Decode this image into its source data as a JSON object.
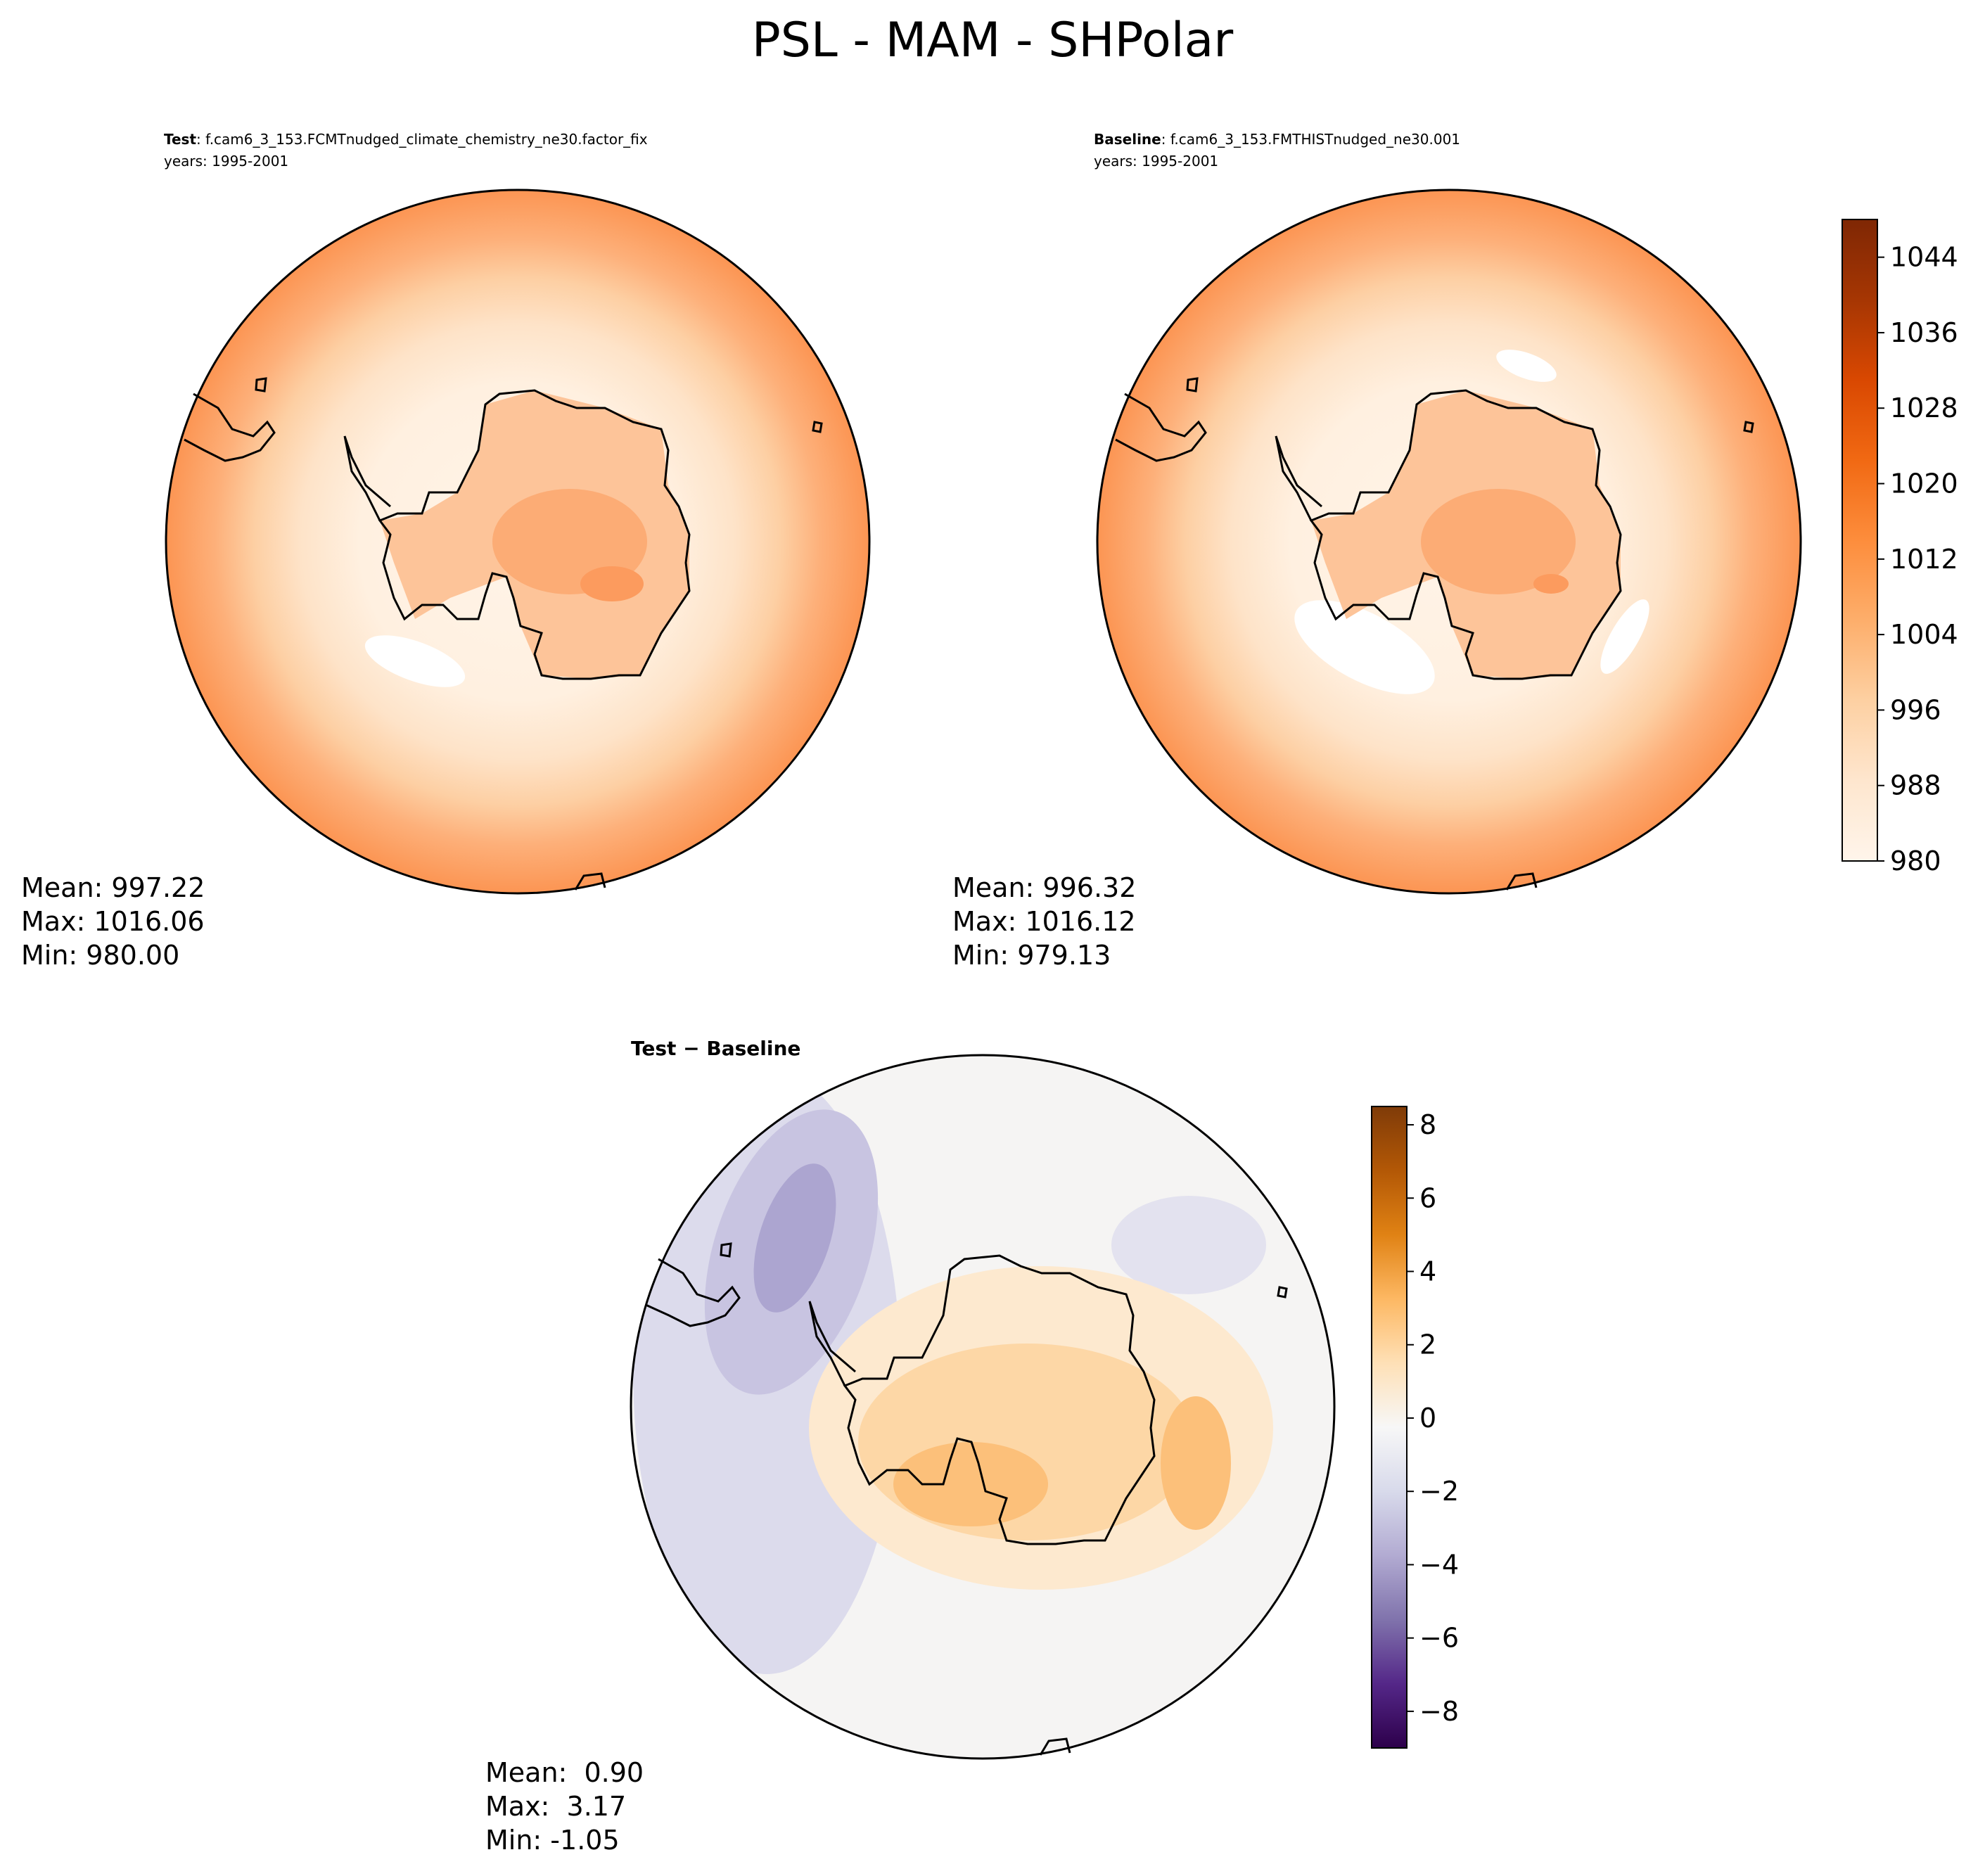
{
  "figure": {
    "title": "PSL - MAM - SHPolar"
  },
  "panels": {
    "test": {
      "label_bold": "Test",
      "label_rest": ": f.cam6_3_153.FCMTnudged_climate_chemistry_ne30.factor_fix",
      "years": "years: 1995-2001",
      "stats": {
        "mean": "Mean: 997.22",
        "max": "Max: 1016.06",
        "min": "Min: 980.00"
      }
    },
    "baseline": {
      "label_bold": "Baseline",
      "label_rest": ": f.cam6_3_153.FMTHISTnudged_ne30.001",
      "years": "years: 1995-2001",
      "stats": {
        "mean": "Mean: 996.32",
        "max": "Max: 1016.12",
        "min": "Min: 979.13"
      }
    },
    "diff": {
      "label_a": "Test",
      "label_op": " − ",
      "label_b": "Baseline",
      "stats": {
        "mean": "Mean:  0.90",
        "max": "Max:  3.17",
        "min": "Min: -1.05"
      }
    }
  },
  "colorbars": {
    "main": {
      "ticks": [
        "980",
        "988",
        "996",
        "1004",
        "1012",
        "1020",
        "1028",
        "1036",
        "1044"
      ],
      "range": [
        980,
        1048
      ],
      "colormap": "Oranges",
      "colors": [
        "#fff5eb",
        "#fee6ce",
        "#fdd0a2",
        "#fdae6b",
        "#fd8d3c",
        "#f16913",
        "#d94801",
        "#a63603",
        "#7f2704"
      ]
    },
    "diff": {
      "ticks": [
        "8",
        "6",
        "4",
        "2",
        "0",
        "−2",
        "−4",
        "−6",
        "−8"
      ],
      "range": [
        -9,
        8.5
      ],
      "colormap": "PuOr_r",
      "colors": [
        "#2d004b",
        "#542788",
        "#8073ac",
        "#b2abd2",
        "#d8daeb",
        "#f7f7f7",
        "#fee0b6",
        "#fdb863",
        "#e08214",
        "#b35806",
        "#7f3b08"
      ]
    }
  },
  "map_colors": {
    "outer_ring": "#fc9c5c",
    "ocean_mid": "#fee6ce",
    "ocean_inner": "#fff1e2",
    "antarctica": "#fdbf8e",
    "antarctica_core": "#fdac72",
    "diff_neg": "#c8c6e2",
    "diff_neg_strong": "#a9a3cf",
    "diff_pos": "#fdd8a8",
    "diff_pos_strong": "#fcbf75",
    "diff_neutral": "#f3f3f4"
  }
}
